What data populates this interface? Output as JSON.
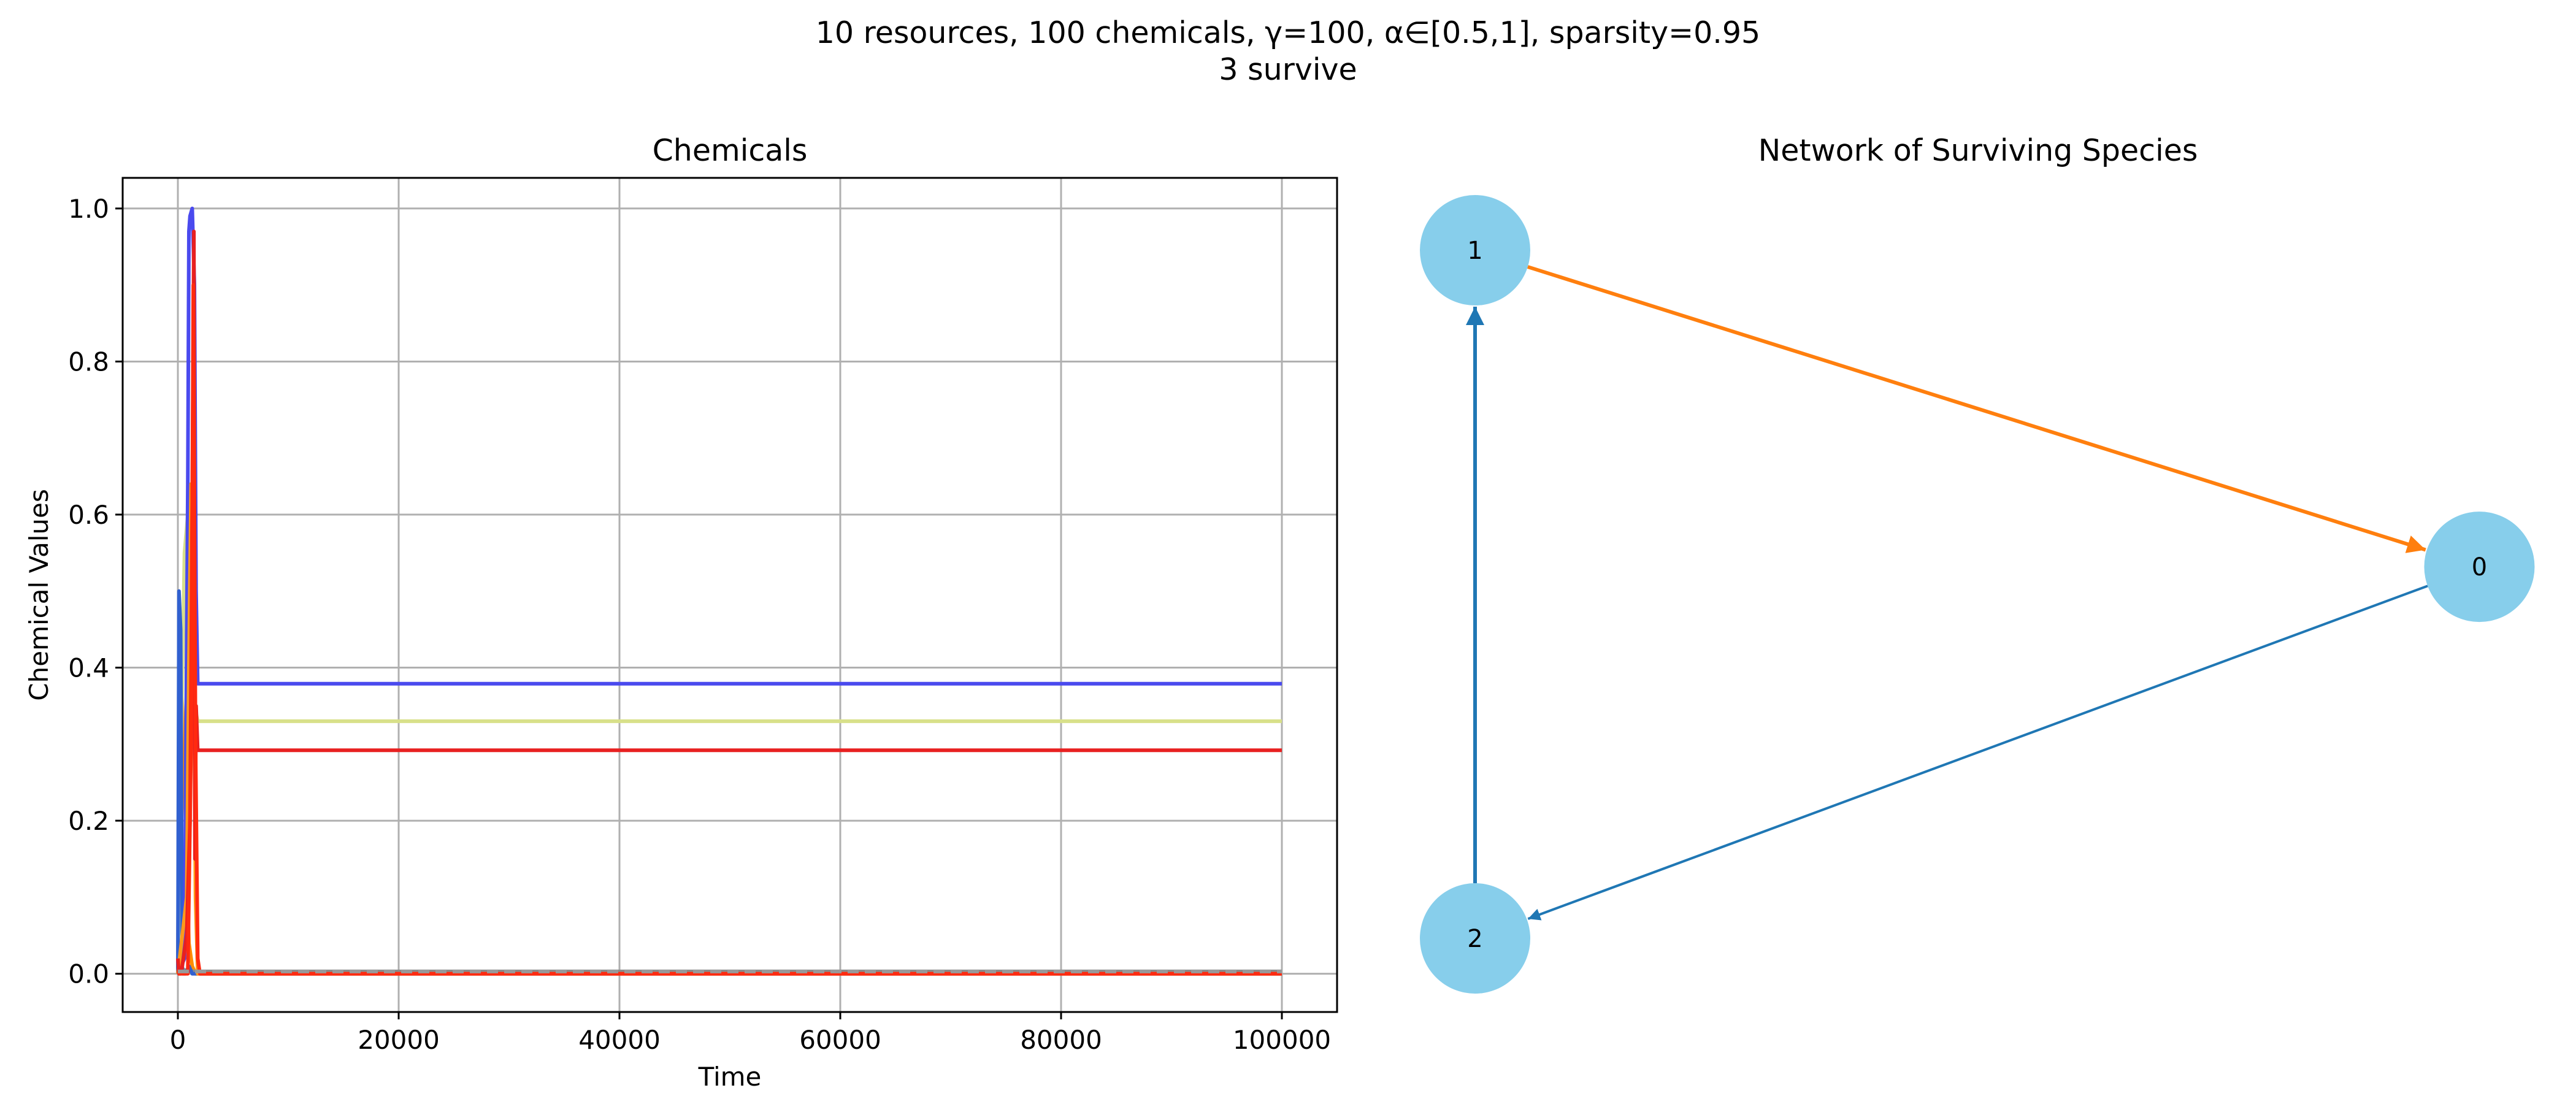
{
  "figure": {
    "suptitle_line1": "10 resources, 100 chemicals, γ=100, α∈[0.5,1], sparsity=0.95",
    "suptitle_line2": "3 survive"
  },
  "chart_data": [
    {
      "type": "line",
      "title": "Chemicals",
      "xlabel": "Time",
      "ylabel": "Chemical Values",
      "xlim": [
        -5000,
        105000
      ],
      "ylim": [
        -0.05,
        1.04
      ],
      "xticks": [
        0,
        20000,
        40000,
        60000,
        80000,
        100000
      ],
      "xtick_labels": [
        "0",
        "20000",
        "40000",
        "60000",
        "80000",
        "100000"
      ],
      "yticks": [
        0.0,
        0.2,
        0.4,
        0.6,
        0.8,
        1.0
      ],
      "ytick_labels": [
        "0.0",
        "0.2",
        "0.4",
        "0.6",
        "0.8",
        "1.0"
      ],
      "grid": true,
      "series": [
        {
          "color": "#ff8c00",
          "x": [
            0,
            150,
            400,
            700,
            1000,
            1300,
            1600,
            100000
          ],
          "y": [
            0.0,
            0.43,
            0.35,
            0.2,
            0.04,
            0.01,
            0.0,
            0.0
          ]
        },
        {
          "color": "#8a8a8a",
          "x": [
            0,
            500,
            1500,
            100000
          ],
          "y": [
            0.02,
            0.005,
            0.003,
            0.003
          ]
        },
        {
          "color": "#d8e08a",
          "x": [
            0,
            300,
            600,
            900,
            1200,
            1500,
            1800,
            100000
          ],
          "y": [
            0.0,
            0.3,
            0.55,
            0.6,
            0.45,
            0.35,
            0.33,
            0.33
          ]
        },
        {
          "color": "#3060d0",
          "x": [
            0,
            100,
            250,
            400,
            700,
            1000,
            1300,
            1600,
            100000
          ],
          "y": [
            0.0,
            0.5,
            0.45,
            0.0,
            0.0,
            0.01,
            0.0,
            0.0,
            0.0
          ]
        },
        {
          "color": "#4a4aee",
          "x": [
            0,
            600,
            900,
            1000,
            1100,
            1300,
            1500,
            1650,
            1800,
            100000
          ],
          "y": [
            0.0,
            0.02,
            0.64,
            0.97,
            0.99,
            1.0,
            0.9,
            0.5,
            0.379,
            0.379
          ]
        },
        {
          "color": "#ff9a1a",
          "x": [
            0,
            800,
            1000,
            1200,
            1400,
            1600,
            1800,
            100000
          ],
          "y": [
            0.0,
            0.1,
            0.4,
            0.64,
            0.5,
            0.1,
            0.0,
            0.0
          ]
        },
        {
          "color": "#e82020",
          "x": [
            0,
            100,
            300,
            800,
            1100,
            1300,
            1450,
            1550,
            1650,
            1800,
            100000
          ],
          "y": [
            0.02,
            0.0,
            0.0,
            0.05,
            0.2,
            0.6,
            0.97,
            0.15,
            0.35,
            0.292,
            0.292
          ]
        },
        {
          "color": "#ff2a10",
          "x": [
            0,
            900,
            1200,
            1400,
            1600,
            1800,
            2000,
            100000
          ],
          "y": [
            0.0,
            0.0,
            0.3,
            0.9,
            0.3,
            0.02,
            0.0,
            0.0
          ]
        },
        {
          "color": "#999999",
          "dashed": true,
          "x": [
            0,
            100000
          ],
          "y": [
            0.003,
            0.003
          ]
        }
      ]
    },
    {
      "type": "network",
      "title": "Network of Surviving Species",
      "nodes": [
        {
          "label": "0",
          "fx": 0.9,
          "fy": 0.46
        },
        {
          "label": "1",
          "fx": 0.0,
          "fy": 0.0
        },
        {
          "label": "2",
          "fx": 0.0,
          "fy": 1.0
        }
      ],
      "edges": [
        {
          "from": "1",
          "to": "0",
          "color": "#ff7f0e",
          "weight": "thick"
        },
        {
          "from": "0",
          "to": "2",
          "color": "#1f77b4",
          "weight": "thin"
        },
        {
          "from": "2",
          "to": "1",
          "color": "#1f77b4",
          "weight": "thick"
        }
      ],
      "node_color": "#87ceeb"
    }
  ]
}
